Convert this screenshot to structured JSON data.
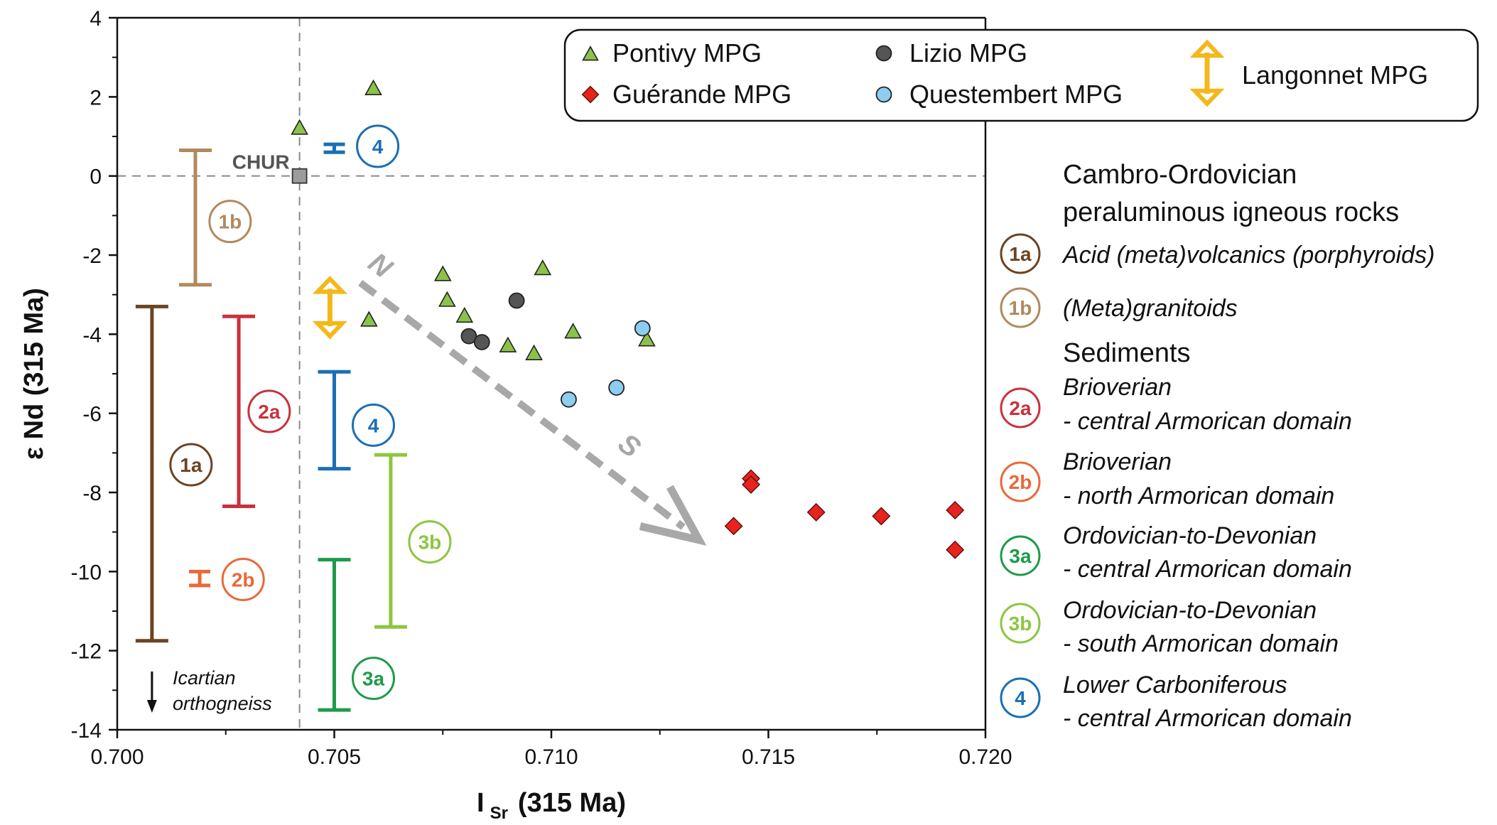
{
  "colors": {
    "pontivy": "#8bc34a",
    "guerande": "#e8221c",
    "lizio": "#555555",
    "questembert": "#8dcdf0",
    "langonnet": "#f4b81c",
    "chur": "#9c9c9c",
    "arrow": "#a8a8a8",
    "r1a": "#6b4423",
    "r1b": "#b08a5e",
    "r2a": "#c8323c",
    "r2b": "#e8693a",
    "r3a": "#1f9a4a",
    "r3b": "#8cc63f",
    "r4": "#1a6fb5"
  },
  "chart_data": {
    "type": "scatter",
    "xlabel": "I",
    "xlabel_sub": "Sr",
    "xlabel_suffix": "(315 Ma)",
    "ylabel": "ε Nd (315 Ma)",
    "xlim": [
      0.7,
      0.72
    ],
    "ylim": [
      -14,
      4
    ],
    "x_ticks": [
      "0.700",
      "0.705",
      "0.710",
      "0.715",
      "0.720"
    ],
    "y_ticks": [
      "4",
      "2",
      "0",
      "-2",
      "-4",
      "-6",
      "-8",
      "-10",
      "-12",
      "-14"
    ],
    "chur": {
      "label": "CHUR",
      "x": 0.7042,
      "y": 0.0
    },
    "series": [
      {
        "name": "Pontivy MPG",
        "marker": "triangle",
        "points": [
          [
            0.7042,
            1.2
          ],
          [
            0.7059,
            2.2
          ],
          [
            0.7058,
            -3.65
          ],
          [
            0.7075,
            -2.5
          ],
          [
            0.7076,
            -3.15
          ],
          [
            0.708,
            -3.55
          ],
          [
            0.709,
            -4.3
          ],
          [
            0.7096,
            -4.5
          ],
          [
            0.7098,
            -2.35
          ],
          [
            0.7105,
            -3.95
          ],
          [
            0.7122,
            -4.15
          ]
        ]
      },
      {
        "name": "Lizio MPG",
        "marker": "circle",
        "points": [
          [
            0.7081,
            -4.05
          ],
          [
            0.7084,
            -4.2
          ],
          [
            0.7092,
            -3.15
          ]
        ]
      },
      {
        "name": "Guérande MPG",
        "marker": "diamond",
        "points": [
          [
            0.7142,
            -8.85
          ],
          [
            0.7146,
            -7.65
          ],
          [
            0.7146,
            -7.8
          ],
          [
            0.7161,
            -8.5
          ],
          [
            0.7176,
            -8.6
          ],
          [
            0.7193,
            -8.45
          ],
          [
            0.7193,
            -9.45
          ]
        ]
      },
      {
        "name": "Questembert MPG",
        "marker": "circle",
        "points": [
          [
            0.7104,
            -5.65
          ],
          [
            0.7115,
            -5.35
          ],
          [
            0.7121,
            -3.85
          ]
        ]
      },
      {
        "name": "Langonnet MPG",
        "marker": "double-arrow",
        "ranges": [
          [
            0.7049,
            -2.6,
            -4.05
          ]
        ]
      }
    ],
    "ranges": [
      {
        "id": "1a",
        "label": "1a",
        "x": 0.7008,
        "y_min": -11.75,
        "y_max": -3.3,
        "label_x": 0.7017,
        "label_y": -7.3
      },
      {
        "id": "1b",
        "label": "1b",
        "x": 0.7018,
        "y_min": -2.75,
        "y_max": 0.65,
        "label_x": 0.7026,
        "label_y": -1.15
      },
      {
        "id": "2a",
        "label": "2a",
        "x": 0.7028,
        "y_min": -8.35,
        "y_max": -3.55,
        "label_x": 0.7035,
        "label_y": -5.95
      },
      {
        "id": "2b",
        "label": "2b",
        "x": 0.7019,
        "y_min": -10.35,
        "y_max": -10.0,
        "label_x": 0.7029,
        "label_y": -10.2
      },
      {
        "id": "3a",
        "label": "3a",
        "x": 0.705,
        "y_min": -13.5,
        "y_max": -9.7,
        "label_x": 0.7059,
        "label_y": -12.7
      },
      {
        "id": "3b",
        "label": "3b",
        "x": 0.7063,
        "y_min": -11.4,
        "y_max": -7.05,
        "label_x": 0.7072,
        "label_y": -9.25
      },
      {
        "id": "4-low",
        "label": "4",
        "x": 0.705,
        "y_min": -7.4,
        "y_max": -4.95,
        "label_x": 0.7059,
        "label_y": -6.3
      },
      {
        "id": "4-high",
        "label": "4",
        "x": 0.705,
        "y_min": 0.6,
        "y_max": 0.8,
        "label_x": 0.706,
        "label_y": 0.75
      }
    ],
    "trend_arrow": {
      "from": [
        0.7056,
        -2.7
      ],
      "to": [
        0.7134,
        -9.2
      ],
      "start_label": "N",
      "end_label": "S"
    },
    "annotation": {
      "line1": "Icartian",
      "line2": "orthogneiss"
    },
    "legend": {
      "placement": "top-right",
      "items": [
        "Pontivy MPG",
        "Lizio MPG",
        "Langonnet MPG",
        "Guérande MPG",
        "Questembert MPG"
      ]
    },
    "side_legend": {
      "heading_line1": "Cambro-Ordovician",
      "heading_line2": "peraluminous igneous rocks",
      "sediments_heading": "Sediments",
      "items": [
        {
          "id": "1a",
          "line1": "Acid (meta)volcanics (porphyroids)",
          "line2": ""
        },
        {
          "id": "1b",
          "line1": "(Meta)granitoids",
          "line2": ""
        },
        {
          "id": "2a",
          "line1": "Brioverian",
          "line2": "- central Armorican domain"
        },
        {
          "id": "2b",
          "line1": "Brioverian",
          "line2": "- north Armorican domain"
        },
        {
          "id": "3a",
          "line1": "Ordovician-to-Devonian",
          "line2": "- central Armorican domain"
        },
        {
          "id": "3b",
          "line1": "Ordovician-to-Devonian",
          "line2": "- south Armorican domain"
        },
        {
          "id": "4",
          "line1": "Lower Carboniferous",
          "line2": "- central Armorican domain"
        }
      ]
    }
  }
}
